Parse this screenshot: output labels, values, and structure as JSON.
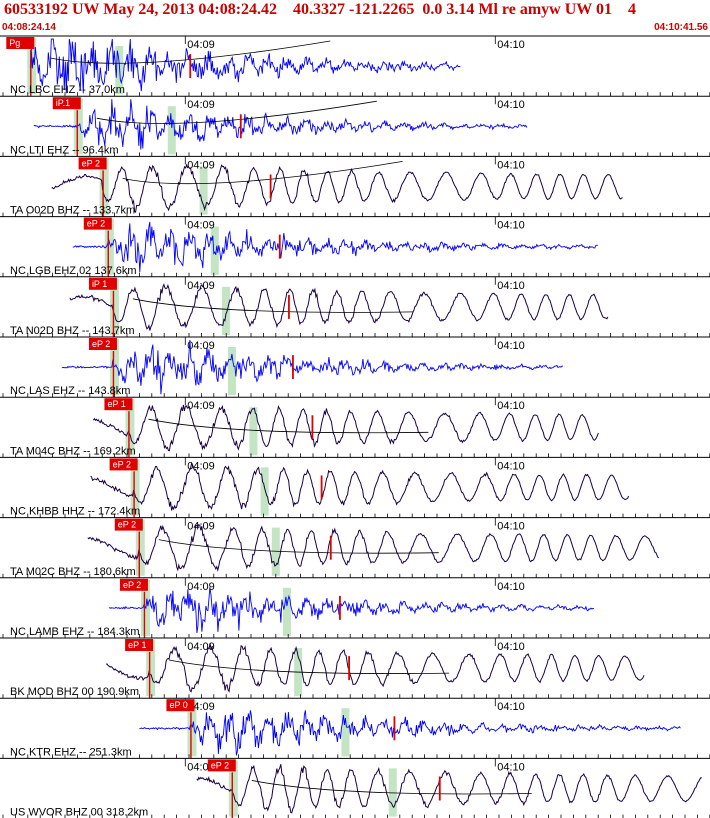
{
  "header": {
    "title": "60533192 UW May 24, 2013 04:08:24.42    40.3327 -121.2265  0.0 3.14 Ml re amyw UW 01    4",
    "start_time": "04:08:24.14",
    "end_time": "04:10:41.56"
  },
  "colors": {
    "title_red": "#cc0000",
    "short_period_trace": "#0000ff",
    "broadband_trace": "#1a0044",
    "pick_marker": "#e00000",
    "window_band": "#b8e0b8",
    "axis": "#000000"
  },
  "chart_data": {
    "type": "record-section",
    "time_range": [
      "04:08:24.14",
      "04:10:41.56"
    ],
    "tick_labels": [
      "04:09",
      "04:10"
    ],
    "traces": [
      {
        "station": "NC LBC EHZ -- 37.0km",
        "pick_label": "Pg",
        "pick_time": "04:08:30",
        "color": "#0000ff"
      },
      {
        "station": "NC LTI EHZ -- 96.4km",
        "pick_label": "iP.1",
        "pick_time": "04:08:39",
        "color": "#0000ff"
      },
      {
        "station": "TA O02D BHZ -- 133.7km",
        "pick_label": "eP 2",
        "pick_time": "04:08:44",
        "color": "#1a0044"
      },
      {
        "station": "NC LGB EHZ 02 137.6km",
        "pick_label": "eP 2",
        "pick_time": "04:08:45",
        "color": "#0000ff"
      },
      {
        "station": "TA N02D BHZ -- 143.7km",
        "pick_label": "iP 1",
        "pick_time": "04:08:46",
        "color": "#1a0044"
      },
      {
        "station": "NC LAS EHZ -- 143.8km",
        "pick_label": "eP 2",
        "pick_time": "04:08:46",
        "color": "#0000ff"
      },
      {
        "station": "TA M04C BHZ -- 169.2km",
        "pick_label": "eP 1",
        "pick_time": "04:08:49",
        "color": "#1a0044"
      },
      {
        "station": "NC KHBB HHZ -- 172.4km",
        "pick_label": "eP 2",
        "pick_time": "04:08:50",
        "color": "#1a0044"
      },
      {
        "station": "TA M02C BHZ -- 180.6km",
        "pick_label": "eP 2",
        "pick_time": "04:08:51",
        "color": "#1a0044"
      },
      {
        "station": "NC LAMB EHZ -- 184.3km",
        "pick_label": "eP 2",
        "pick_time": "04:08:52",
        "color": "#0000ff"
      },
      {
        "station": "BK MOD BHZ 00 190.9km",
        "pick_label": "eP 1",
        "pick_time": "04:08:53",
        "color": "#1a0044"
      },
      {
        "station": "NC KTR EHZ -- 251.3km",
        "pick_label": "eP 0",
        "pick_time": "04:09:01",
        "color": "#0000ff"
      },
      {
        "station": "US WVOR BHZ 00 318.2km",
        "pick_label": "eP 2",
        "pick_time": "04:09:09",
        "color": "#1a0044"
      }
    ]
  }
}
